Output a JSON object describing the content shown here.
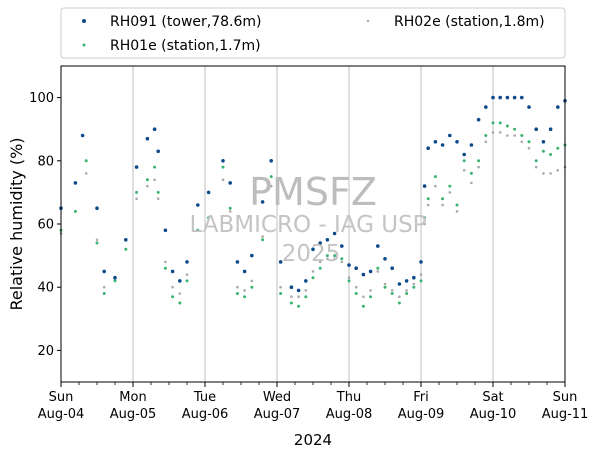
{
  "chart_data": {
    "type": "scatter",
    "title": "",
    "xlabel": "2024",
    "ylabel": "Relative humidity (%)",
    "ylim": [
      10,
      110
    ],
    "yticks": [
      20,
      40,
      60,
      80,
      100
    ],
    "xlim": [
      0,
      7
    ],
    "xticks": [
      {
        "x": 0,
        "day": "Sun",
        "date": "Aug-04"
      },
      {
        "x": 1,
        "day": "Mon",
        "date": "Aug-05"
      },
      {
        "x": 2,
        "day": "Tue",
        "date": "Aug-06"
      },
      {
        "x": 3,
        "day": "Wed",
        "date": "Aug-07"
      },
      {
        "x": 4,
        "day": "Thu",
        "date": "Aug-08"
      },
      {
        "x": 5,
        "day": "Fri",
        "date": "Aug-09"
      },
      {
        "x": 6,
        "day": "Sat",
        "date": "Aug-10"
      },
      {
        "x": 7,
        "day": "Sun",
        "date": "Aug-11"
      }
    ],
    "grid": "vertical",
    "legend_position": "top",
    "watermark": {
      "line1": "PMSFZ",
      "line2": "LABMICRO - IAG USP",
      "line3": "2025"
    },
    "series": [
      {
        "name": "RH091 (tower,78.6m)",
        "color": "#0d4a8a",
        "x": [
          0,
          0.2,
          0.3,
          0.5,
          0.6,
          0.75,
          0.9,
          1.05,
          1.2,
          1.3,
          1.35,
          1.45,
          1.55,
          1.65,
          1.75,
          1.9,
          2.05,
          2.25,
          2.35,
          2.45,
          2.55,
          2.65,
          2.8,
          2.92,
          3.05,
          3.2,
          3.3,
          3.4,
          3.5,
          3.6,
          3.7,
          3.8,
          3.9,
          4.0,
          4.1,
          4.2,
          4.3,
          4.4,
          4.5,
          4.6,
          4.7,
          4.8,
          4.9,
          5.0,
          5.05,
          5.1,
          5.2,
          5.3,
          5.4,
          5.5,
          5.6,
          5.7,
          5.8,
          5.9,
          6.0,
          6.1,
          6.2,
          6.3,
          6.4,
          6.5,
          6.6,
          6.7,
          6.8,
          6.9,
          7.0
        ],
        "y": [
          65,
          73,
          88,
          65,
          45,
          43,
          55,
          78,
          87,
          90,
          83,
          58,
          45,
          42,
          48,
          66,
          70,
          80,
          73,
          48,
          45,
          50,
          67,
          80,
          48,
          40,
          39,
          42,
          52,
          54,
          55,
          57,
          53,
          47,
          46,
          44,
          45,
          53,
          49,
          46,
          41,
          42,
          43,
          48,
          72,
          84,
          86,
          85,
          88,
          86,
          82,
          85,
          93,
          97,
          100,
          100,
          100,
          100,
          100,
          97,
          90,
          86,
          90,
          97,
          99
        ]
      },
      {
        "name": "RH01e (station,1.7m)",
        "color": "#3cb371",
        "x": [
          0,
          0.2,
          0.35,
          0.5,
          0.6,
          0.75,
          0.9,
          1.05,
          1.2,
          1.3,
          1.35,
          1.45,
          1.55,
          1.65,
          1.75,
          1.9,
          2.05,
          2.25,
          2.35,
          2.45,
          2.55,
          2.65,
          2.8,
          2.92,
          3.05,
          3.2,
          3.3,
          3.4,
          3.5,
          3.6,
          3.7,
          3.8,
          3.9,
          4.0,
          4.1,
          4.2,
          4.3,
          4.4,
          4.5,
          4.6,
          4.7,
          4.8,
          4.9,
          5.0,
          5.05,
          5.1,
          5.2,
          5.3,
          5.4,
          5.5,
          5.6,
          5.7,
          5.8,
          5.9,
          6.0,
          6.1,
          6.2,
          6.3,
          6.4,
          6.5,
          6.6,
          6.7,
          6.8,
          6.9,
          7.0
        ],
        "y": [
          58,
          64,
          80,
          54,
          38,
          42,
          52,
          70,
          74,
          78,
          70,
          46,
          37,
          35,
          42,
          58,
          62,
          78,
          65,
          38,
          37,
          40,
          55,
          75,
          38,
          35,
          34,
          37,
          43,
          46,
          50,
          50,
          49,
          42,
          38,
          34,
          37,
          46,
          40,
          38,
          35,
          38,
          40,
          42,
          62,
          68,
          75,
          68,
          72,
          66,
          80,
          76,
          80,
          88,
          92,
          92,
          91,
          90,
          88,
          86,
          80,
          83,
          82,
          84,
          85
        ]
      },
      {
        "name": "RH02e (station,1.8m)",
        "color": "#a9a9a9",
        "x": [
          0,
          0.2,
          0.35,
          0.5,
          0.6,
          0.75,
          0.9,
          1.05,
          1.2,
          1.3,
          1.35,
          1.45,
          1.55,
          1.65,
          1.75,
          1.9,
          2.05,
          2.25,
          2.35,
          2.45,
          2.55,
          2.65,
          2.8,
          2.92,
          3.05,
          3.2,
          3.3,
          3.4,
          3.5,
          3.6,
          3.7,
          3.8,
          3.9,
          4.0,
          4.1,
          4.2,
          4.3,
          4.4,
          4.5,
          4.6,
          4.7,
          4.8,
          4.9,
          5.0,
          5.05,
          5.1,
          5.2,
          5.3,
          5.4,
          5.5,
          5.6,
          5.7,
          5.8,
          5.9,
          6.0,
          6.1,
          6.2,
          6.3,
          6.4,
          6.5,
          6.6,
          6.7,
          6.8,
          6.9,
          7.0
        ],
        "y": [
          57,
          64,
          76,
          55,
          40,
          43,
          52,
          68,
          72,
          74,
          68,
          48,
          40,
          38,
          44,
          58,
          62,
          74,
          64,
          40,
          39,
          42,
          56,
          72,
          40,
          37,
          37,
          39,
          45,
          48,
          49,
          49,
          48,
          43,
          40,
          37,
          39,
          45,
          41,
          39,
          37,
          39,
          41,
          44,
          60,
          66,
          72,
          66,
          70,
          64,
          77,
          73,
          78,
          86,
          89,
          89,
          88,
          88,
          86,
          84,
          78,
          76,
          76,
          77,
          78
        ]
      }
    ]
  }
}
